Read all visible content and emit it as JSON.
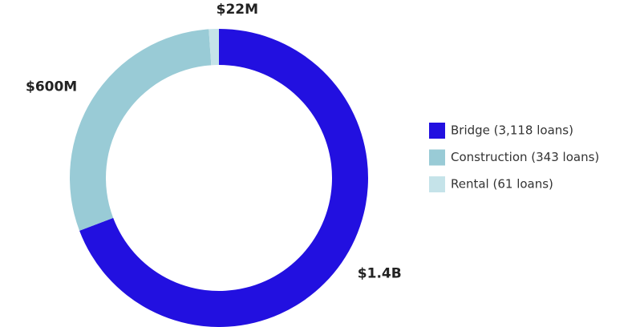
{
  "chart_data": {
    "type": "donut",
    "categories": [
      "Bridge (3,118 loans)",
      "Construction (343 loans)",
      "Rental (61 loans)"
    ],
    "values": [
      1400000000,
      600000000,
      22000000
    ],
    "value_labels": [
      "$1.4B",
      "$600M",
      "$22M"
    ],
    "colors": [
      "#2210e0",
      "#99cbd6",
      "#c5e3e9"
    ],
    "legend": "right"
  }
}
